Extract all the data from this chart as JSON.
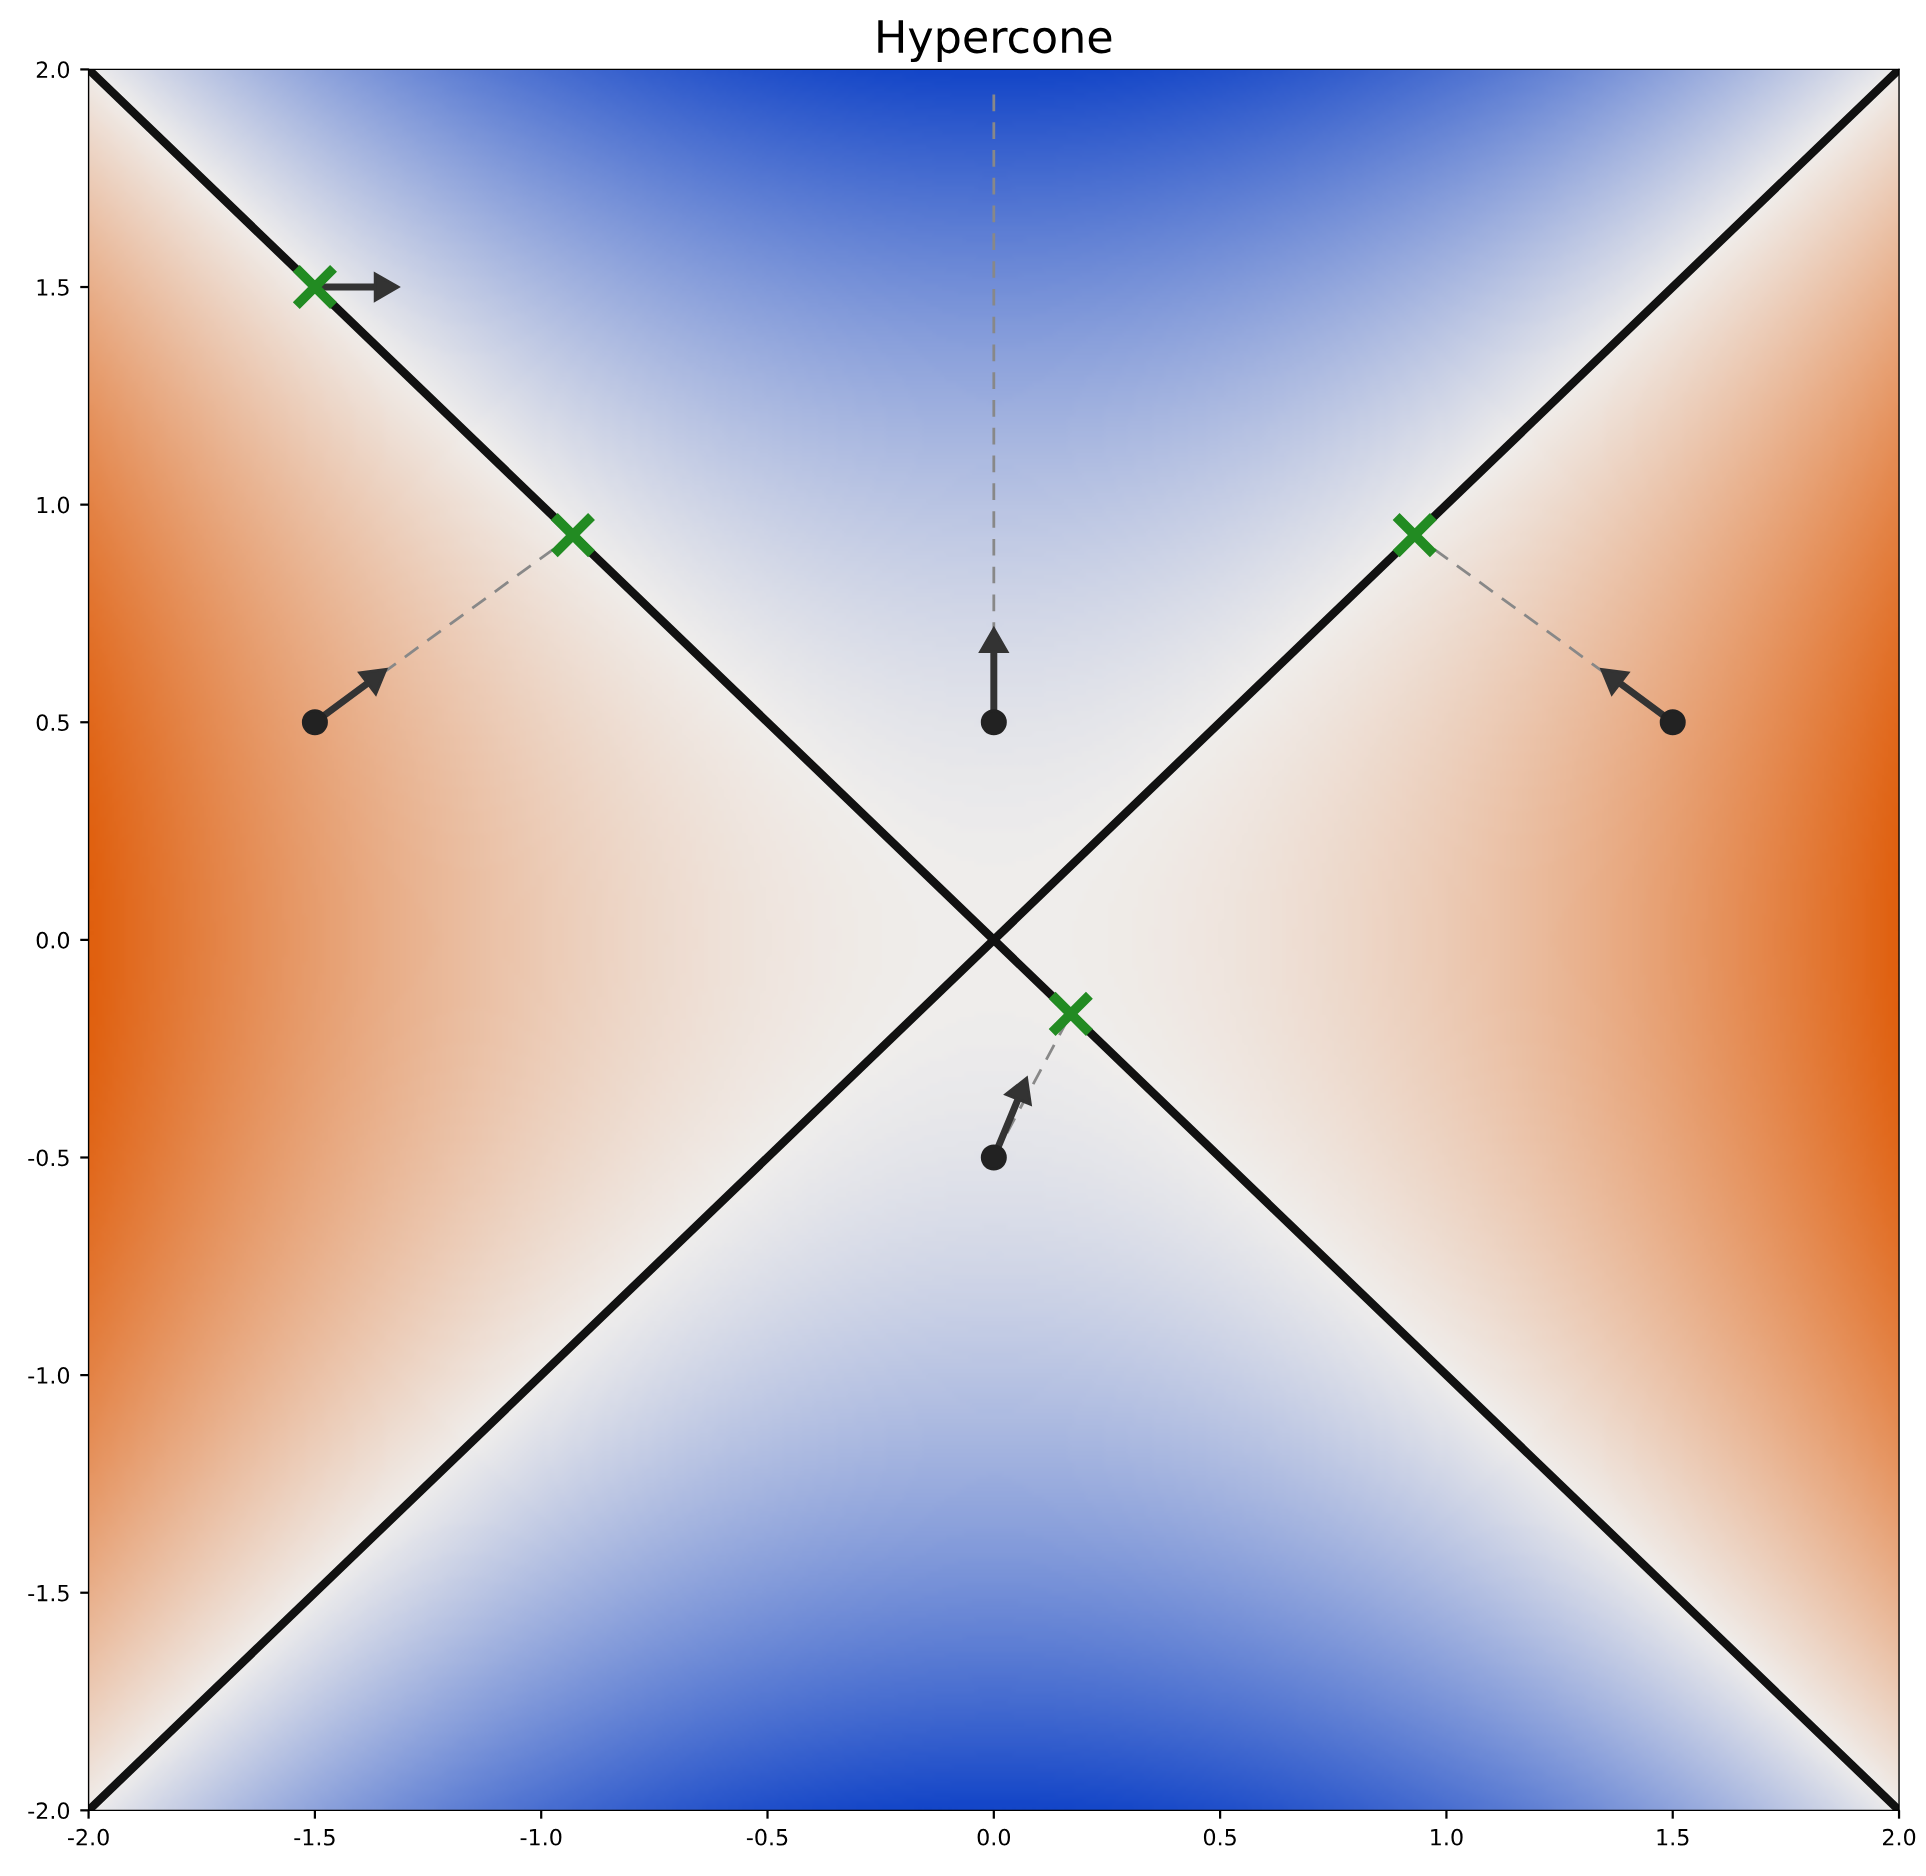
{
  "chart_data": {
    "type": "line",
    "title": "Hypercone",
    "xlim": [
      -2.0,
      2.0
    ],
    "ylim": [
      -2.0,
      2.0
    ],
    "xticks": [
      {
        "value": -2,
        "label": "-2.0"
      },
      -1.5,
      {
        "value": -1,
        "label": "-1.0"
      },
      -0.5,
      {
        "value": 0,
        "label": "0.0"
      },
      0.5,
      {
        "value": 1,
        "label": "1.0"
      },
      1.5,
      {
        "value": 2,
        "label": "2.0"
      }
    ],
    "yticks": [
      {
        "value": -2,
        "label": "-2.0"
      },
      -1.5,
      {
        "value": -1,
        "label": "-1.0"
      },
      -0.5,
      {
        "value": 0,
        "label": "0.0"
      },
      0.5,
      {
        "value": 1,
        "label": "1.0"
      },
      1.5,
      {
        "value": 2,
        "label": "2.0"
      }
    ],
    "grid": false,
    "legend": false,
    "series": [
      {
        "color": "#111111",
        "x": [
          -2.0,
          2.0
        ],
        "values": [
          -2.0,
          2.0
        ],
        "line_style": "solid"
      },
      {
        "color": "#111111",
        "x": [
          -2.0,
          2.0
        ],
        "values": [
          2.0,
          -2.0
        ],
        "line_style": "solid"
      },
      {
        "color": "#888888",
        "x": [
          -1.5,
          -0.93
        ],
        "values": [
          0.5,
          0.93
        ],
        "line_style": "dashed"
      },
      {
        "color": "#888888",
        "x": [
          0.0,
          0.0
        ],
        "values": [
          0.5,
          1.95
        ],
        "line_style": "dashed"
      },
      {
        "color": "#888888",
        "x": [
          1.5,
          0.93
        ],
        "values": [
          0.5,
          0.93
        ],
        "line_style": "dashed"
      },
      {
        "color": "#888888",
        "x": [
          0.0,
          0.17
        ],
        "values": [
          -0.5,
          -0.17
        ],
        "line_style": "dashed"
      },
      {
        "color": "#333333",
        "x": [
          -1.5,
          -1.35
        ],
        "values": [
          1.5,
          1.5
        ],
        "line_style": "solid",
        "marker": "triangle"
      },
      {
        "color": "#333333",
        "x": [
          -1.5,
          -1.37
        ],
        "values": [
          0.5,
          0.6
        ],
        "line_style": "solid",
        "marker": "triangle"
      },
      {
        "color": "#333333",
        "x": [
          0.0,
          0.0
        ],
        "values": [
          0.5,
          0.68
        ],
        "line_style": "solid",
        "marker": "triangle"
      },
      {
        "color": "#333333",
        "x": [
          1.5,
          1.37
        ],
        "values": [
          0.5,
          0.6
        ],
        "line_style": "solid",
        "marker": "triangle"
      },
      {
        "color": "#333333",
        "x": [
          0.0,
          0.06
        ],
        "values": [
          -0.5,
          -0.35
        ],
        "line_style": "solid",
        "marker": "triangle"
      },
      {
        "type": "scatter",
        "color": "#222222",
        "marker": "circle",
        "x": [
          -1.5,
          0.0,
          1.5,
          0.0
        ],
        "values": [
          0.5,
          0.5,
          0.5,
          -0.5
        ]
      },
      {
        "type": "scatter",
        "color": "#228b22",
        "marker": "cross",
        "x": [
          -1.5,
          -0.93,
          0.93,
          0.17
        ],
        "values": [
          1.5,
          0.93,
          0.93,
          -0.17
        ]
      }
    ]
  }
}
